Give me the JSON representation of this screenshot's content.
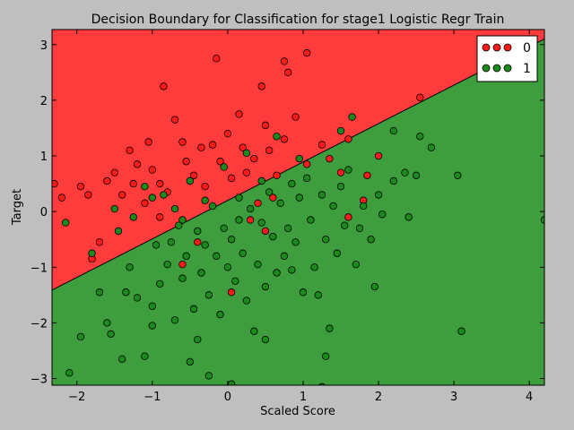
{
  "chart_data": {
    "type": "scatter",
    "title": "Decision Boundary for Classification for stage1 Logistic Regr Train",
    "xlabel": "Scaled Score",
    "ylabel": "Target",
    "xlim": [
      -2.33,
      4.2
    ],
    "ylim": [
      -3.12,
      3.27
    ],
    "xticks": [
      -2,
      -1,
      0,
      1,
      2,
      3,
      4
    ],
    "yticks": [
      -3,
      -2,
      -1,
      0,
      1,
      2,
      3
    ],
    "grid": false,
    "legend_position": "top-right",
    "boundary": {
      "slope": 0.69,
      "intercept": 0.2,
      "line": [
        [
          -2.33,
          -1.41
        ],
        [
          4.2,
          3.1
        ]
      ]
    },
    "regions": [
      {
        "label": "0",
        "side": "above",
        "color": "#ff3b3b"
      },
      {
        "label": "1",
        "side": "below",
        "color": "#3e9e3e"
      }
    ],
    "series": [
      {
        "name": "0",
        "color": "#ff1a1a",
        "points": [
          [
            -2.3,
            0.5
          ],
          [
            -2.2,
            0.25
          ],
          [
            -1.95,
            0.45
          ],
          [
            -1.85,
            0.3
          ],
          [
            -1.7,
            -0.55
          ],
          [
            -1.6,
            0.55
          ],
          [
            -1.5,
            0.7
          ],
          [
            -1.4,
            0.3
          ],
          [
            -1.25,
            0.5
          ],
          [
            -1.2,
            0.85
          ],
          [
            -1.1,
            0.15
          ],
          [
            -1.05,
            1.25
          ],
          [
            -1,
            0.75
          ],
          [
            -0.9,
            0.5
          ],
          [
            -0.85,
            2.25
          ],
          [
            -0.8,
            0.35
          ],
          [
            -0.7,
            1.65
          ],
          [
            -0.6,
            1.25
          ],
          [
            -0.55,
            0.9
          ],
          [
            -0.45,
            0.65
          ],
          [
            -0.35,
            1.15
          ],
          [
            -0.3,
            0.45
          ],
          [
            -0.2,
            1.2
          ],
          [
            -0.1,
            0.9
          ],
          [
            0,
            1.4
          ],
          [
            0.05,
            0.6
          ],
          [
            0.15,
            1.75
          ],
          [
            0.2,
            1.15
          ],
          [
            0.25,
            0.7
          ],
          [
            0.35,
            0.95
          ],
          [
            0.45,
            2.25
          ],
          [
            0.5,
            1.55
          ],
          [
            0.55,
            1.1
          ],
          [
            0.65,
            0.65
          ],
          [
            0.75,
            1.3
          ],
          [
            0.8,
            2.5
          ],
          [
            0.9,
            1.7
          ],
          [
            1.05,
            0.85
          ],
          [
            1.25,
            1.2
          ],
          [
            1.35,
            0.95
          ],
          [
            1.5,
            0.7
          ],
          [
            1.6,
            1.3
          ],
          [
            1.8,
            0.2
          ],
          [
            1.85,
            0.65
          ],
          [
            2.0,
            1.0
          ],
          [
            0.05,
            -1.45
          ],
          [
            0.3,
            -0.15
          ],
          [
            0.4,
            0.15
          ],
          [
            -0.4,
            -0.55
          ],
          [
            -0.6,
            -0.95
          ],
          [
            -1.8,
            -0.85
          ],
          [
            -0.9,
            -0.1
          ],
          [
            0.5,
            -0.35
          ],
          [
            1.6,
            -0.1
          ],
          [
            2.55,
            2.05
          ],
          [
            1.05,
            2.85
          ],
          [
            -1.3,
            1.1
          ],
          [
            0.75,
            2.7
          ],
          [
            -0.15,
            2.75
          ],
          [
            0.6,
            0.25
          ]
        ]
      },
      {
        "name": "1",
        "color": "#1a8a1a",
        "points": [
          [
            -2.1,
            -2.9
          ],
          [
            -1.95,
            -2.25
          ],
          [
            -1.8,
            -0.75
          ],
          [
            -1.7,
            -1.45
          ],
          [
            -1.6,
            -2.0
          ],
          [
            -1.55,
            -2.2
          ],
          [
            -1.4,
            -2.65
          ],
          [
            -1.35,
            -1.45
          ],
          [
            -1.3,
            -1.0
          ],
          [
            -1.2,
            -1.55
          ],
          [
            -1.1,
            -2.6
          ],
          [
            -1.0,
            -1.7
          ],
          [
            -0.95,
            -0.6
          ],
          [
            -0.9,
            -1.3
          ],
          [
            -0.8,
            -0.95
          ],
          [
            -0.75,
            -0.55
          ],
          [
            -0.7,
            -1.95
          ],
          [
            -0.65,
            -0.25
          ],
          [
            -0.6,
            -1.2
          ],
          [
            -0.55,
            -0.8
          ],
          [
            -0.5,
            -2.7
          ],
          [
            -0.45,
            -1.75
          ],
          [
            -0.4,
            -0.35
          ],
          [
            -0.35,
            -1.1
          ],
          [
            -0.3,
            -0.6
          ],
          [
            -0.25,
            -1.5
          ],
          [
            -0.2,
            0.1
          ],
          [
            -0.15,
            -0.8
          ],
          [
            -0.1,
            -1.85
          ],
          [
            -0.05,
            -0.3
          ],
          [
            0,
            -1.0
          ],
          [
            0.05,
            -0.5
          ],
          [
            0.1,
            -1.25
          ],
          [
            0.15,
            0.25
          ],
          [
            0.2,
            -0.75
          ],
          [
            0.25,
            -1.6
          ],
          [
            0.3,
            0.05
          ],
          [
            0.35,
            -2.15
          ],
          [
            0.4,
            -0.95
          ],
          [
            0.45,
            -0.2
          ],
          [
            0.5,
            -1.35
          ],
          [
            0.55,
            0.35
          ],
          [
            0.6,
            -0.45
          ],
          [
            0.65,
            -1.1
          ],
          [
            0.7,
            0.15
          ],
          [
            0.75,
            -0.8
          ],
          [
            0.8,
            -0.3
          ],
          [
            0.85,
            0.5
          ],
          [
            0.9,
            -0.55
          ],
          [
            0.95,
            0.25
          ],
          [
            1.0,
            -1.45
          ],
          [
            1.05,
            0.6
          ],
          [
            1.1,
            -0.15
          ],
          [
            1.15,
            -1.0
          ],
          [
            1.2,
            -1.5
          ],
          [
            1.25,
            0.3
          ],
          [
            1.3,
            -0.5
          ],
          [
            1.35,
            -2.1
          ],
          [
            1.4,
            0.1
          ],
          [
            1.45,
            -0.75
          ],
          [
            1.5,
            0.45
          ],
          [
            1.55,
            -0.25
          ],
          [
            1.6,
            0.75
          ],
          [
            1.7,
            -0.95
          ],
          [
            1.75,
            -0.3
          ],
          [
            1.8,
            0.1
          ],
          [
            1.9,
            -0.5
          ],
          [
            2.0,
            0.3
          ],
          [
            2.05,
            -0.05
          ],
          [
            2.2,
            0.55
          ],
          [
            2.35,
            0.7
          ],
          [
            2.4,
            -0.1
          ],
          [
            2.5,
            0.65
          ],
          [
            2.55,
            1.35
          ],
          [
            2.7,
            1.15
          ],
          [
            3.05,
            0.65
          ],
          [
            3.1,
            -2.15
          ],
          [
            4.2,
            -0.15
          ],
          [
            -1.1,
            0.45
          ],
          [
            -0.85,
            0.3
          ],
          [
            -0.7,
            0.05
          ],
          [
            -0.5,
            0.55
          ],
          [
            -0.3,
            0.2
          ],
          [
            -1.5,
            0.05
          ],
          [
            -2.15,
            -0.2
          ],
          [
            -0.25,
            -2.95
          ],
          [
            0.05,
            -3.1
          ],
          [
            1.25,
            -3.15
          ],
          [
            -0.4,
            -2.3
          ],
          [
            0.5,
            -2.3
          ],
          [
            1.3,
            -2.6
          ],
          [
            -1.0,
            -2.05
          ],
          [
            -1.45,
            -0.35
          ],
          [
            -1.25,
            -0.1
          ],
          [
            0.85,
            -1.05
          ],
          [
            1.95,
            -1.35
          ],
          [
            1.65,
            1.7
          ],
          [
            1.5,
            1.45
          ],
          [
            0.25,
            1.05
          ],
          [
            -0.05,
            0.8
          ],
          [
            0.65,
            1.35
          ],
          [
            0.95,
            0.95
          ],
          [
            2.2,
            1.45
          ],
          [
            -1.0,
            0.25
          ],
          [
            -0.6,
            -0.15
          ],
          [
            0.15,
            -0.15
          ],
          [
            0.45,
            0.55
          ]
        ]
      }
    ]
  }
}
